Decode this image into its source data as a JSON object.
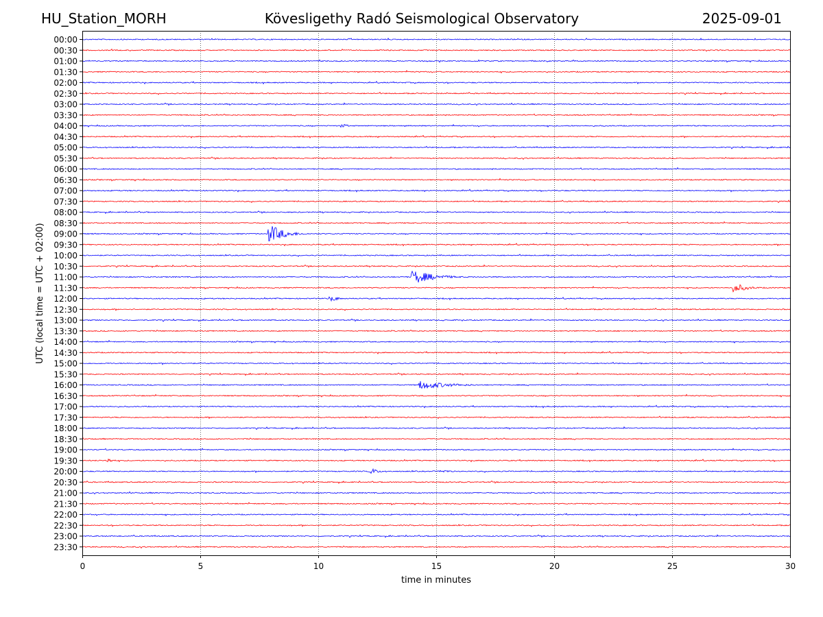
{
  "header": {
    "station": "HU_Station_MORH",
    "title": "Kövesligethy Radó Seismological Observatory",
    "date": "2025-09-01"
  },
  "chart_data": {
    "type": "line",
    "title": "Kövesligethy Radó Seismological Observatory",
    "xlabel": "time in minutes",
    "ylabel": "UTC (local time = UTC + 02:00)",
    "xlim": [
      0,
      30
    ],
    "x_ticks": [
      0,
      5,
      10,
      15,
      20,
      25,
      30
    ],
    "vertical_grid": [
      5,
      10,
      15,
      20,
      25
    ],
    "grid": "vertical dotted",
    "colors": {
      "even_hour": "#0000ff",
      "half_hour": "#ff0000"
    },
    "rows": [
      "00:00",
      "00:30",
      "01:00",
      "01:30",
      "02:00",
      "02:30",
      "03:00",
      "03:30",
      "04:00",
      "04:30",
      "05:00",
      "05:30",
      "06:00",
      "06:30",
      "07:00",
      "07:30",
      "08:00",
      "08:30",
      "09:00",
      "09:30",
      "10:00",
      "10:30",
      "11:00",
      "11:30",
      "12:00",
      "12:30",
      "13:00",
      "13:30",
      "14:00",
      "14:30",
      "15:00",
      "15:30",
      "16:00",
      "16:30",
      "17:00",
      "17:30",
      "18:00",
      "18:30",
      "19:00",
      "19:30",
      "20:00",
      "20:30",
      "21:00",
      "21:30",
      "22:00",
      "22:30",
      "23:00",
      "23:30"
    ],
    "events": [
      {
        "row": "04:00",
        "start_min": 11.0,
        "duration_min": 0.5,
        "amplitude": 2.5
      },
      {
        "row": "09:00",
        "start_min": 7.9,
        "duration_min": 1.7,
        "amplitude": 12
      },
      {
        "row": "11:00",
        "start_min": 14.0,
        "duration_min": 2.5,
        "amplitude": 9
      },
      {
        "row": "11:30",
        "start_min": 27.6,
        "duration_min": 1.4,
        "amplitude": 6
      },
      {
        "row": "12:00",
        "start_min": 10.5,
        "duration_min": 0.8,
        "amplitude": 3.5
      },
      {
        "row": "16:00",
        "start_min": 14.3,
        "duration_min": 3.3,
        "amplitude": 6
      },
      {
        "row": "19:30",
        "start_min": 1.0,
        "duration_min": 0.6,
        "amplitude": 3
      },
      {
        "row": "20:00",
        "start_min": 12.2,
        "duration_min": 0.8,
        "amplitude": 3.5
      },
      {
        "row": "20:00",
        "start_min": 15.2,
        "duration_min": 1.2,
        "amplitude": 2
      }
    ]
  }
}
